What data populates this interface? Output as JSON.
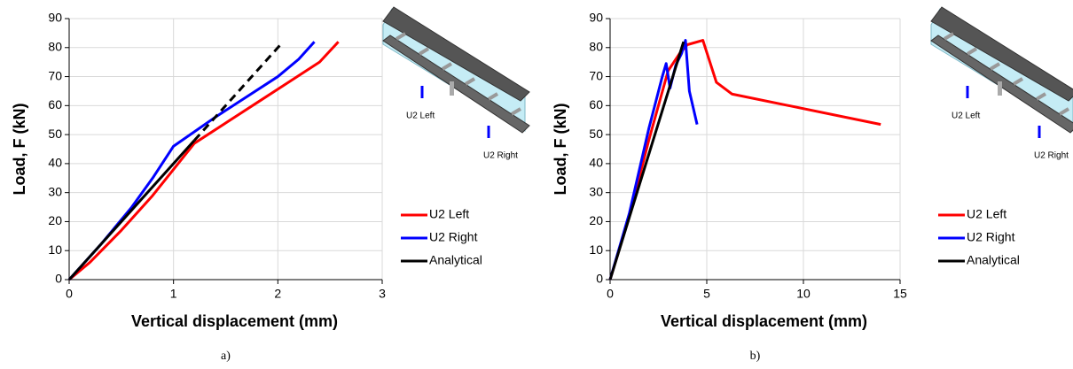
{
  "chart_data": [
    {
      "type": "line",
      "caption": "a)",
      "x_label": "Vertical displacement (mm)",
      "y_label": "Load, F (kN)",
      "xlim": [
        0,
        3
      ],
      "xticks": [
        0,
        1,
        2,
        3
      ],
      "ylim": [
        0,
        90
      ],
      "yticks": [
        0,
        10,
        20,
        30,
        40,
        50,
        60,
        70,
        80,
        90
      ],
      "grid": true,
      "annotations": [
        "U2 Left",
        "U2 Right"
      ],
      "series": [
        {
          "name": "U2 Left",
          "color": "#ff0000",
          "x": [
            0,
            0.2,
            0.5,
            0.8,
            1.0,
            1.2,
            1.5,
            1.8,
            2.1,
            2.4,
            2.58
          ],
          "values": [
            0,
            6,
            17,
            29,
            38,
            47,
            54,
            61,
            68,
            75,
            82
          ]
        },
        {
          "name": "U2 Right",
          "color": "#0000ff",
          "x": [
            0,
            0.3,
            0.6,
            0.8,
            1.0,
            1.2,
            1.4,
            1.7,
            2.0,
            2.2,
            2.35
          ],
          "values": [
            0,
            12,
            25,
            35,
            46,
            51,
            56,
            63,
            70,
            76,
            82
          ]
        },
        {
          "name": "Analytical",
          "color": "#000000",
          "x": [
            0,
            1.2
          ],
          "values": [
            0,
            48
          ]
        },
        {
          "color": "#000000",
          "linestyle": "dashed",
          "x": [
            1.2,
            2.05
          ],
          "values": [
            48,
            82
          ]
        }
      ]
    },
    {
      "type": "line",
      "caption": "b)",
      "x_label": "Vertical displacement (mm)",
      "y_label": "Load, F (kN)",
      "xlim": [
        0,
        15
      ],
      "xticks": [
        0,
        5,
        10,
        15
      ],
      "ylim": [
        0,
        90
      ],
      "yticks": [
        0,
        10,
        20,
        30,
        40,
        50,
        60,
        70,
        80,
        90
      ],
      "grid": true,
      "annotations": [
        "U2 Left",
        "U2 Right"
      ],
      "series": [
        {
          "name": "U2 Left",
          "color": "#ff0000",
          "x": [
            0,
            1,
            2,
            3,
            3.3,
            3.6,
            4,
            4.8,
            5.5,
            6.3,
            14
          ],
          "values": [
            0,
            22,
            48,
            72,
            75,
            78,
            81,
            82.5,
            68,
            64,
            53.5
          ]
        },
        {
          "name": "U2 Right",
          "color": "#0000ff",
          "x": [
            0,
            1,
            2,
            2.7,
            2.9,
            3.1,
            3.4,
            3.7,
            3.9,
            4.1,
            4.5
          ],
          "values": [
            0,
            23,
            52,
            70,
            74.5,
            66,
            74,
            78,
            82.5,
            65,
            53.5
          ]
        },
        {
          "name": "Analytical",
          "color": "#000000",
          "x": [
            0,
            3.8
          ],
          "values": [
            0,
            82
          ]
        }
      ]
    }
  ]
}
